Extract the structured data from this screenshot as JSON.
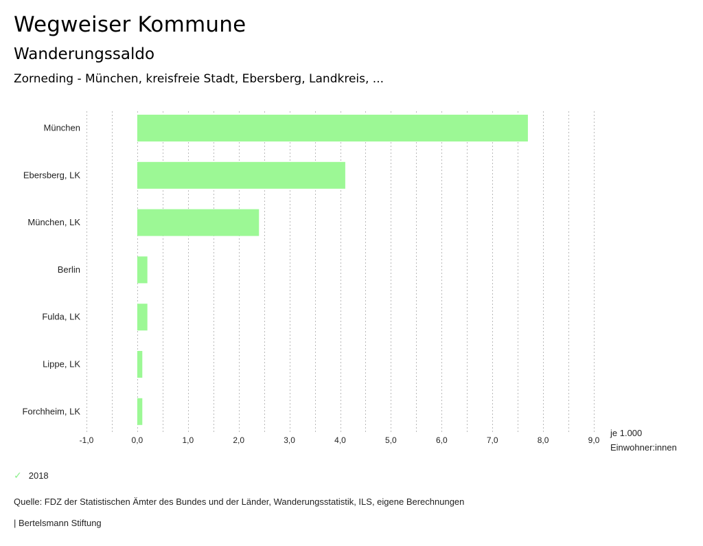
{
  "header": {
    "title": "Wegweiser Kommune",
    "subtitle": "Wanderungssaldo",
    "region": "Zorneding - München, kreisfreie Stadt, Ebersberg, Landkreis, ..."
  },
  "chart_data": {
    "type": "bar",
    "orientation": "horizontal",
    "categories": [
      "München",
      "Ebersberg, LK",
      "München, LK",
      "Berlin",
      "Fulda, LK",
      "Lippe, LK",
      "Forchheim, LK"
    ],
    "series": [
      {
        "name": "2018",
        "values": [
          7.7,
          4.1,
          2.4,
          0.2,
          0.2,
          0.1,
          0.1
        ],
        "color": "#9cf895"
      }
    ],
    "xlim": [
      -1.0,
      9.0
    ],
    "x_ticks": [
      -1.0,
      0.0,
      1.0,
      2.0,
      3.0,
      4.0,
      5.0,
      6.0,
      7.0,
      8.0,
      9.0
    ],
    "x_tick_labels": [
      "-1,0",
      "0,0",
      "1,0",
      "2,0",
      "3,0",
      "4,0",
      "5,0",
      "6,0",
      "7,0",
      "8,0",
      "9,0"
    ],
    "grid_step": 0.5,
    "grid": true,
    "xlabel": [
      "je 1.000",
      "Einwohner:innen"
    ],
    "ylabel": "",
    "legend_position": "bottom-left"
  },
  "legend": {
    "icon": "check-icon",
    "label": "2018",
    "color": "#8ef08e"
  },
  "footer": {
    "source": "Quelle: FDZ der Statistischen Ämter des Bundes und der Länder, Wanderungsstatistik, ILS, eigene Berechnungen",
    "brand": "| Bertelsmann Stiftung"
  }
}
